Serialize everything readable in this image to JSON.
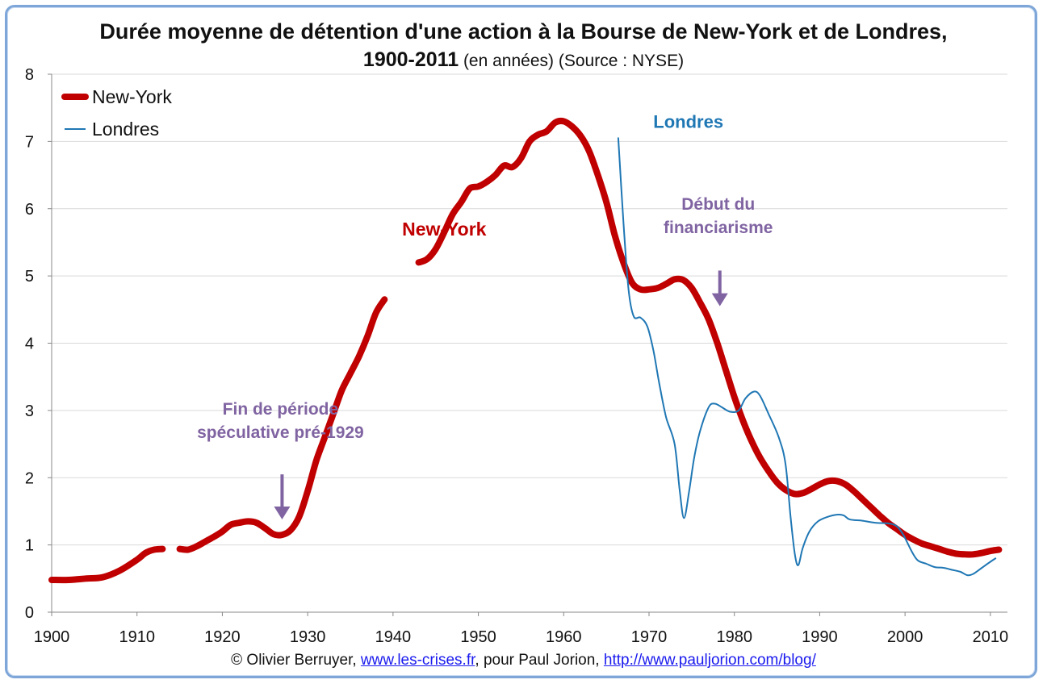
{
  "title": {
    "line1": "Durée moyenne de détention d'une action à la Bourse de New-York et de Londres,",
    "line2_bold": "1900-2011",
    "line2_rest": " (en années) (Source : NYSE)"
  },
  "footer": {
    "prefix": "© Olivier Berruyer, ",
    "link1": "www.les-crises.fr",
    "middle": ",  pour Paul Jorion, ",
    "link2": "http://www.pauljorion.com/blog/"
  },
  "colors": {
    "newyork": "#c00000",
    "londres": "#1f77b4",
    "annotation": "#8064a2",
    "grid": "#d9d9d9"
  },
  "chart_data": {
    "type": "line",
    "xlim": [
      1900,
      2012
    ],
    "ylim": [
      0,
      8
    ],
    "xticks": [
      1900,
      1910,
      1920,
      1930,
      1940,
      1950,
      1960,
      1970,
      1980,
      1990,
      2000,
      2010
    ],
    "yticks": [
      0,
      1,
      2,
      3,
      4,
      5,
      6,
      7,
      8
    ],
    "grid": "horizontal",
    "legend": "top-left",
    "series": [
      {
        "name": "New-York",
        "segments": [
          [
            [
              1900,
              0.48
            ],
            [
              1902,
              0.48
            ],
            [
              1904,
              0.5
            ],
            [
              1906,
              0.52
            ],
            [
              1908,
              0.62
            ],
            [
              1910,
              0.78
            ],
            [
              1911,
              0.88
            ],
            [
              1912,
              0.93
            ],
            [
              1913,
              0.94
            ]
          ],
          [
            [
              1915,
              0.94
            ],
            [
              1916,
              0.93
            ],
            [
              1917,
              0.98
            ],
            [
              1918,
              1.05
            ],
            [
              1919,
              1.12
            ],
            [
              1920,
              1.2
            ],
            [
              1921,
              1.3
            ],
            [
              1922,
              1.33
            ],
            [
              1923,
              1.35
            ],
            [
              1924,
              1.33
            ],
            [
              1925,
              1.25
            ],
            [
              1926,
              1.16
            ],
            [
              1927,
              1.15
            ],
            [
              1928,
              1.22
            ],
            [
              1929,
              1.42
            ],
            [
              1930,
              1.8
            ],
            [
              1931,
              2.25
            ],
            [
              1932,
              2.6
            ],
            [
              1933,
              2.95
            ],
            [
              1934,
              3.3
            ],
            [
              1935,
              3.55
            ],
            [
              1936,
              3.8
            ],
            [
              1937,
              4.1
            ],
            [
              1938,
              4.45
            ],
            [
              1939,
              4.65
            ]
          ],
          [
            [
              1943,
              5.2
            ],
            [
              1944,
              5.25
            ],
            [
              1945,
              5.4
            ],
            [
              1946,
              5.65
            ],
            [
              1947,
              5.92
            ],
            [
              1948,
              6.1
            ],
            [
              1949,
              6.3
            ],
            [
              1950,
              6.33
            ],
            [
              1951,
              6.4
            ],
            [
              1952,
              6.5
            ],
            [
              1953,
              6.64
            ],
            [
              1954,
              6.62
            ],
            [
              1955,
              6.75
            ],
            [
              1956,
              7.0
            ],
            [
              1957,
              7.1
            ],
            [
              1958,
              7.15
            ],
            [
              1959,
              7.28
            ],
            [
              1960,
              7.3
            ],
            [
              1961,
              7.22
            ],
            [
              1962,
              7.08
            ],
            [
              1963,
              6.85
            ],
            [
              1964,
              6.5
            ],
            [
              1965,
              6.1
            ],
            [
              1966,
              5.6
            ],
            [
              1967,
              5.2
            ],
            [
              1968,
              4.9
            ],
            [
              1969,
              4.8
            ],
            [
              1970,
              4.8
            ],
            [
              1971,
              4.82
            ],
            [
              1972,
              4.88
            ],
            [
              1973,
              4.95
            ],
            [
              1974,
              4.94
            ],
            [
              1975,
              4.82
            ],
            [
              1976,
              4.6
            ],
            [
              1977,
              4.35
            ],
            [
              1978,
              4.0
            ],
            [
              1979,
              3.6
            ],
            [
              1980,
              3.2
            ],
            [
              1981,
              2.85
            ],
            [
              1982,
              2.55
            ],
            [
              1983,
              2.3
            ],
            [
              1984,
              2.1
            ],
            [
              1985,
              1.93
            ],
            [
              1986,
              1.82
            ],
            [
              1987,
              1.76
            ],
            [
              1988,
              1.77
            ],
            [
              1989,
              1.83
            ],
            [
              1990,
              1.9
            ],
            [
              1991,
              1.95
            ],
            [
              1992,
              1.95
            ],
            [
              1993,
              1.9
            ],
            [
              1994,
              1.8
            ],
            [
              1995,
              1.68
            ],
            [
              1996,
              1.56
            ],
            [
              1997,
              1.44
            ],
            [
              1998,
              1.33
            ],
            [
              1999,
              1.24
            ],
            [
              2000,
              1.15
            ],
            [
              2001,
              1.08
            ],
            [
              2002,
              1.02
            ],
            [
              2003,
              0.98
            ],
            [
              2004,
              0.94
            ],
            [
              2005,
              0.9
            ],
            [
              2006,
              0.87
            ],
            [
              2007,
              0.86
            ],
            [
              2008,
              0.86
            ],
            [
              2009,
              0.88
            ],
            [
              2010,
              0.91
            ],
            [
              2011,
              0.93
            ]
          ]
        ]
      },
      {
        "name": "Londres",
        "segments": [
          [
            [
              1966.4,
              7.05
            ],
            [
              1967,
              5.8
            ],
            [
              1967.6,
              4.8
            ],
            [
              1968.2,
              4.4
            ],
            [
              1969,
              4.38
            ],
            [
              1969.8,
              4.25
            ],
            [
              1970.5,
              3.9
            ],
            [
              1971.2,
              3.4
            ],
            [
              1972,
              2.9
            ],
            [
              1973,
              2.5
            ],
            [
              1973.6,
              1.8
            ],
            [
              1974.1,
              1.4
            ],
            [
              1974.7,
              1.8
            ],
            [
              1975.3,
              2.3
            ],
            [
              1976,
              2.7
            ],
            [
              1977,
              3.05
            ],
            [
              1977.7,
              3.1
            ],
            [
              1978.5,
              3.05
            ],
            [
              1979.5,
              2.98
            ],
            [
              1980.5,
              3.0
            ],
            [
              1981.3,
              3.18
            ],
            [
              1982.3,
              3.28
            ],
            [
              1983,
              3.22
            ],
            [
              1984,
              2.95
            ],
            [
              1985.2,
              2.6
            ],
            [
              1986,
              2.2
            ],
            [
              1986.6,
              1.4
            ],
            [
              1987.1,
              0.85
            ],
            [
              1987.5,
              0.7
            ],
            [
              1988,
              0.95
            ],
            [
              1988.8,
              1.2
            ],
            [
              1989.8,
              1.35
            ],
            [
              1991,
              1.42
            ],
            [
              1992,
              1.45
            ],
            [
              1992.8,
              1.44
            ],
            [
              1993.5,
              1.38
            ],
            [
              1995,
              1.36
            ],
            [
              1996.5,
              1.33
            ],
            [
              1998,
              1.32
            ],
            [
              1999,
              1.28
            ],
            [
              1999.8,
              1.15
            ],
            [
              2000.8,
              0.9
            ],
            [
              2001.5,
              0.77
            ],
            [
              2002.5,
              0.72
            ],
            [
              2003.5,
              0.67
            ],
            [
              2004.5,
              0.66
            ],
            [
              2005.5,
              0.63
            ],
            [
              2006.5,
              0.6
            ],
            [
              2007.3,
              0.55
            ],
            [
              2008,
              0.57
            ],
            [
              2009,
              0.66
            ],
            [
              2010,
              0.75
            ],
            [
              2010.6,
              0.8
            ]
          ]
        ]
      }
    ],
    "annotations": {
      "label_newyork": {
        "text": "New-York",
        "x": 1946,
        "y": 5.6
      },
      "label_londres": {
        "text": "Londres",
        "x": 1970.5,
        "y": 7.2
      },
      "fin_speculative": {
        "line1": "Fin de période",
        "line2": "spéculative pré-1929",
        "x": 1927,
        "y_text": 2.6,
        "arrow_from": 2.05,
        "arrow_to": 1.38
      },
      "debut_financiarisme": {
        "line1": "Début du",
        "line2": "financiarisme",
        "x": 1978.3,
        "y_text": 5.65,
        "arrow_from": 5.08,
        "arrow_to": 4.55
      }
    }
  }
}
